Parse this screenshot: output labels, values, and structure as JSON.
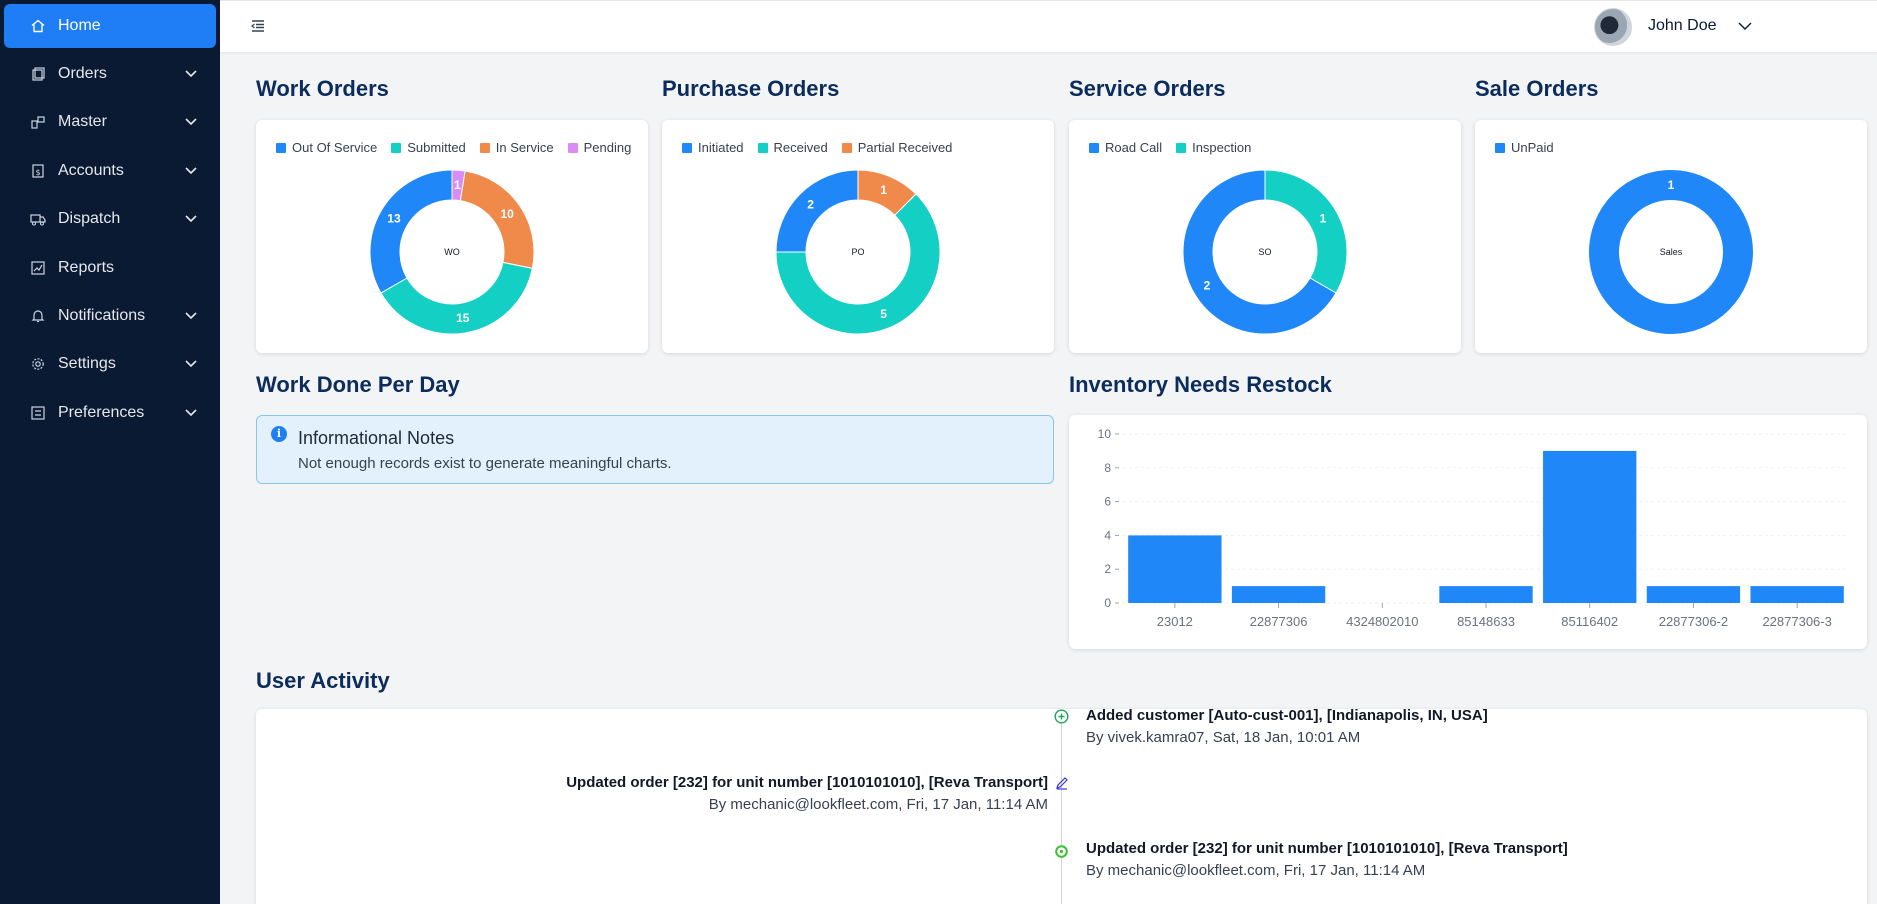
{
  "sidebar": {
    "items": [
      {
        "label": "Home",
        "icon": "home-icon",
        "active": true,
        "has_children": false
      },
      {
        "label": "Orders",
        "icon": "orders-icon",
        "active": false,
        "has_children": true
      },
      {
        "label": "Master",
        "icon": "master-icon",
        "active": false,
        "has_children": true
      },
      {
        "label": "Accounts",
        "icon": "accounts-icon",
        "active": false,
        "has_children": true
      },
      {
        "label": "Dispatch",
        "icon": "truck-icon",
        "active": false,
        "has_children": true
      },
      {
        "label": "Reports",
        "icon": "chart-icon",
        "active": false,
        "has_children": false
      },
      {
        "label": "Notifications",
        "icon": "bell-icon",
        "active": false,
        "has_children": true
      },
      {
        "label": "Settings",
        "icon": "gear-icon",
        "active": false,
        "has_children": true
      },
      {
        "label": "Preferences",
        "icon": "preferences-icon",
        "active": false,
        "has_children": true
      }
    ]
  },
  "header": {
    "user_name": "John Doe"
  },
  "sections": {
    "work_orders": "Work Orders",
    "purchase_orders": "Purchase Orders",
    "service_orders": "Service Orders",
    "sale_orders": "Sale Orders",
    "work_done": "Work Done Per Day",
    "inventory": "Inventory Needs Restock",
    "user_activity": "User Activity"
  },
  "info": {
    "title": "Informational Notes",
    "body": "Not enough records exist to generate meaningful charts."
  },
  "colors": {
    "blue": "#1f87f8",
    "teal": "#14cfc4",
    "orange": "#f08a4b",
    "purple": "#d98cf5"
  },
  "chart_data": [
    {
      "type": "pie",
      "center_label": "WO",
      "categories": [
        "Out Of Service",
        "Submitted",
        "In Service",
        "Pending"
      ],
      "values": [
        13,
        15,
        10,
        1
      ],
      "draw_order": [
        "Pending",
        "In Service",
        "Submitted",
        "Out Of Service"
      ],
      "legend": "top"
    },
    {
      "type": "pie",
      "center_label": "PO",
      "categories": [
        "Initiated",
        "Received",
        "Partial Received"
      ],
      "values": [
        2,
        5,
        1
      ],
      "draw_order": [
        "Partial Received",
        "Received",
        "Initiated"
      ],
      "legend": "top"
    },
    {
      "type": "pie",
      "center_label": "SO",
      "categories": [
        "Road Call",
        "Inspection"
      ],
      "values": [
        2,
        1
      ],
      "draw_order": [
        "Inspection",
        "Road Call"
      ],
      "legend": "top"
    },
    {
      "type": "pie",
      "center_label": "Sales",
      "categories": [
        "UnPaid"
      ],
      "values": [
        1
      ],
      "draw_order": [
        "UnPaid"
      ],
      "legend": "top"
    },
    {
      "type": "bar",
      "categories": [
        "23012",
        "22877306",
        "4324802010",
        "85148633",
        "85116402",
        "22877306-2",
        "22877306-3"
      ],
      "values": [
        4,
        1,
        0,
        1,
        9,
        1,
        1
      ],
      "yticks": [
        0,
        2,
        4,
        6,
        8,
        10
      ],
      "ylim": [
        0,
        10
      ],
      "grid": true
    }
  ],
  "activity": [
    {
      "side": "right",
      "title": "Added customer [Auto-cust-001], [Indianapolis, IN, USA]",
      "sub": "By vivek.kamra07, Sat, 18 Jan, 10:01 AM",
      "icon": "add-circle-icon"
    },
    {
      "side": "left",
      "title": "Updated order [232] for unit number [1010101010], [Reva Transport]",
      "sub": "By mechanic@lookfleet.com, Fri, 17 Jan, 11:14 AM",
      "icon": "edit-icon"
    },
    {
      "side": "right",
      "title": "Updated order [232] for unit number [1010101010], [Reva Transport]",
      "sub": "By mechanic@lookfleet.com, Fri, 17 Jan, 11:14 AM",
      "icon": "dot-circle-icon"
    }
  ]
}
